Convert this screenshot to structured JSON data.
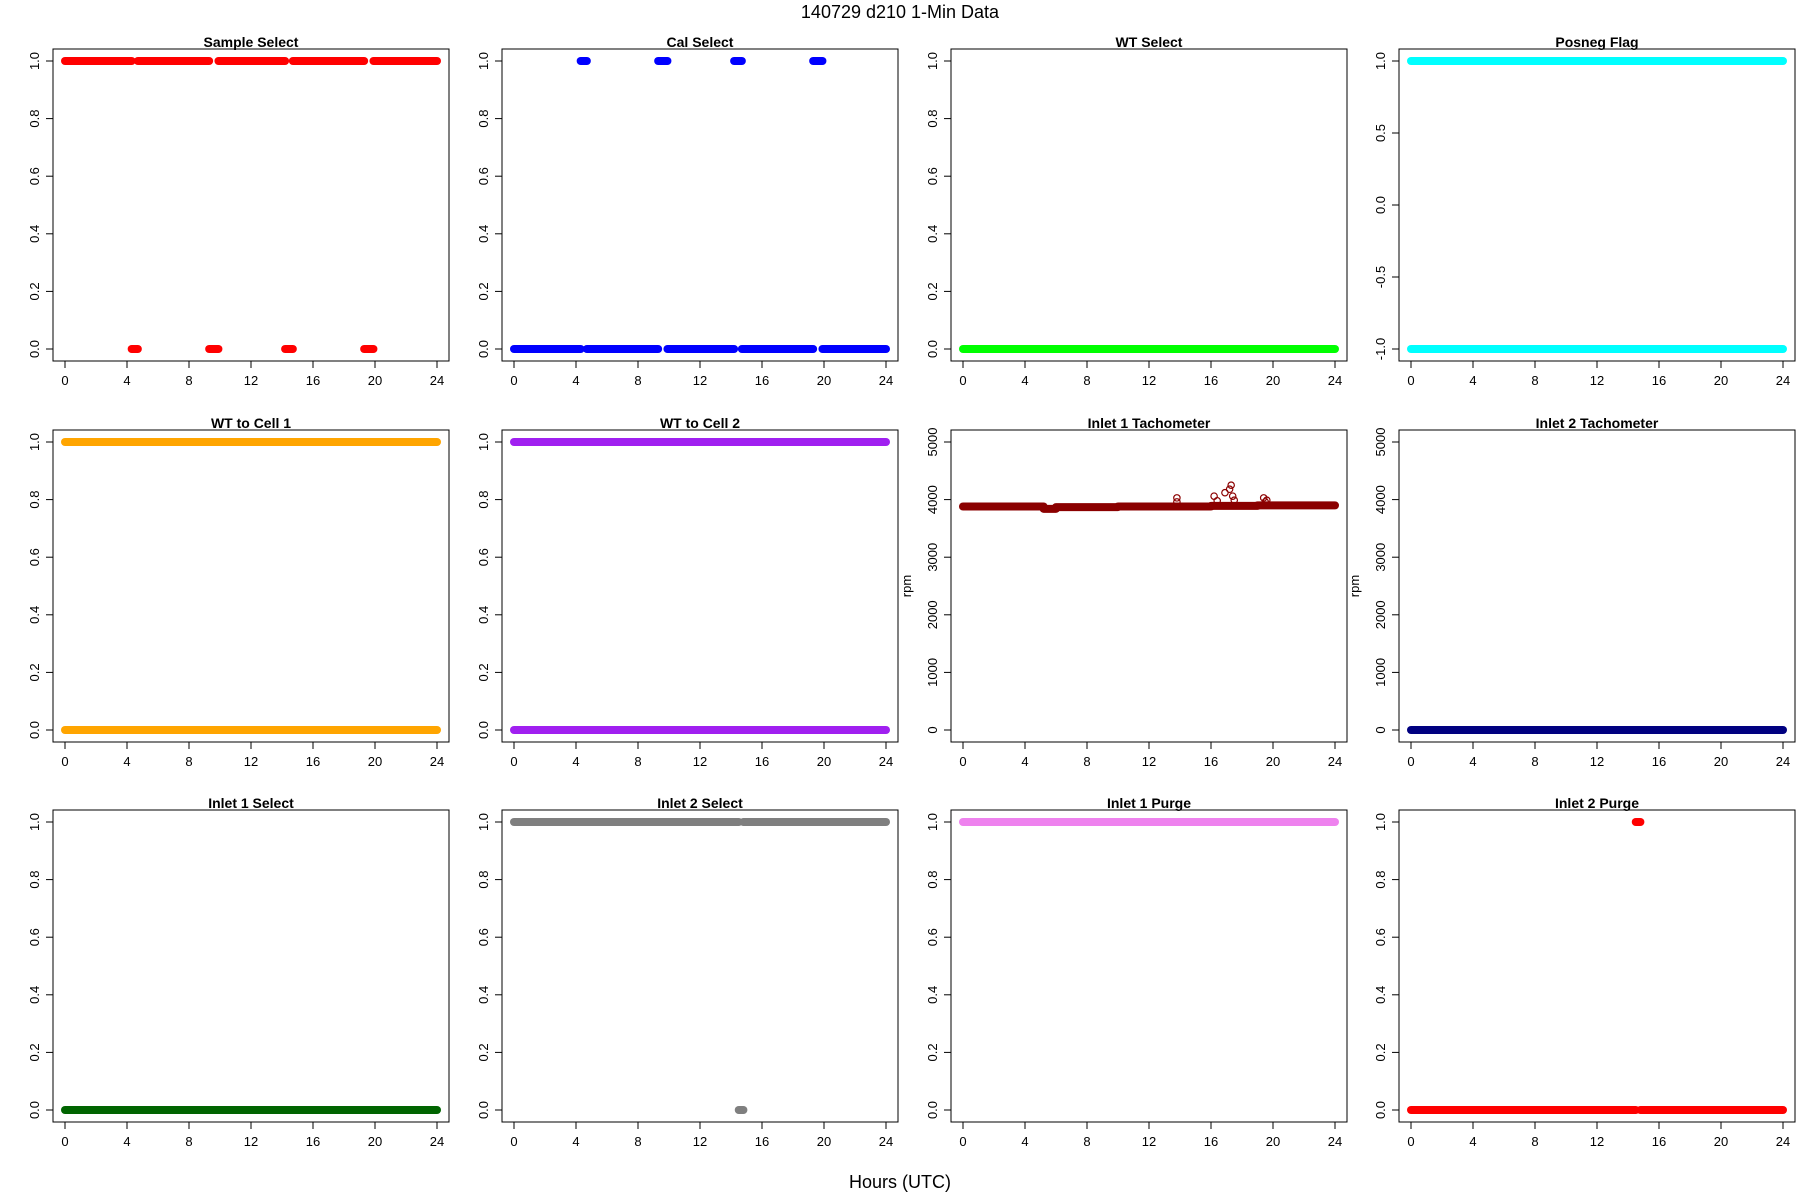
{
  "figure": {
    "title": "140729   d210   1-Min Data",
    "xlabel": "Hours (UTC)"
  },
  "chart_data": [
    {
      "type": "scatter",
      "title": "Sample Select",
      "ylabel": "",
      "color": "#ff0000",
      "xlim": [
        0,
        24
      ],
      "ylim": [
        0,
        1
      ],
      "x_ticks": [
        0,
        4,
        8,
        12,
        16,
        20,
        24
      ],
      "y_ticks": [
        0.0,
        0.2,
        0.4,
        0.6,
        0.8,
        1.0
      ],
      "y_tick_labels": [
        "0.0",
        "0.2",
        "0.4",
        "0.6",
        "0.8",
        "1.0"
      ],
      "segments": [
        {
          "y": 1,
          "x0": 0,
          "x1": 4.3
        },
        {
          "y": 0,
          "x0": 4.3,
          "x1": 4.7
        },
        {
          "y": 1,
          "x0": 4.7,
          "x1": 9.3
        },
        {
          "y": 0,
          "x0": 9.3,
          "x1": 9.9
        },
        {
          "y": 1,
          "x0": 9.9,
          "x1": 14.2
        },
        {
          "y": 0,
          "x0": 14.2,
          "x1": 14.7
        },
        {
          "y": 1,
          "x0": 14.7,
          "x1": 19.3
        },
        {
          "y": 0,
          "x0": 19.3,
          "x1": 19.9
        },
        {
          "y": 1,
          "x0": 19.9,
          "x1": 24
        }
      ],
      "points": []
    },
    {
      "type": "scatter",
      "title": "Cal Select",
      "ylabel": "",
      "color": "#0000ff",
      "xlim": [
        0,
        24
      ],
      "ylim": [
        0,
        1
      ],
      "x_ticks": [
        0,
        4,
        8,
        12,
        16,
        20,
        24
      ],
      "y_ticks": [
        0.0,
        0.2,
        0.4,
        0.6,
        0.8,
        1.0
      ],
      "y_tick_labels": [
        "0.0",
        "0.2",
        "0.4",
        "0.6",
        "0.8",
        "1.0"
      ],
      "segments": [
        {
          "y": 0,
          "x0": 0,
          "x1": 4.3
        },
        {
          "y": 1,
          "x0": 4.3,
          "x1": 4.7
        },
        {
          "y": 0,
          "x0": 4.7,
          "x1": 9.3
        },
        {
          "y": 1,
          "x0": 9.3,
          "x1": 9.9
        },
        {
          "y": 0,
          "x0": 9.9,
          "x1": 14.2
        },
        {
          "y": 1,
          "x0": 14.2,
          "x1": 14.7
        },
        {
          "y": 0,
          "x0": 14.7,
          "x1": 19.3
        },
        {
          "y": 1,
          "x0": 19.3,
          "x1": 19.9
        },
        {
          "y": 0,
          "x0": 19.9,
          "x1": 24
        }
      ],
      "points": []
    },
    {
      "type": "scatter",
      "title": "WT Select",
      "ylabel": "",
      "color": "#00ff00",
      "xlim": [
        0,
        24
      ],
      "ylim": [
        0,
        1
      ],
      "x_ticks": [
        0,
        4,
        8,
        12,
        16,
        20,
        24
      ],
      "y_ticks": [
        0.0,
        0.2,
        0.4,
        0.6,
        0.8,
        1.0
      ],
      "y_tick_labels": [
        "0.0",
        "0.2",
        "0.4",
        "0.6",
        "0.8",
        "1.0"
      ],
      "segments": [
        {
          "y": 0,
          "x0": 0,
          "x1": 24
        }
      ],
      "points": []
    },
    {
      "type": "scatter",
      "title": "Posneg Flag",
      "ylabel": "",
      "color": "#00ffff",
      "xlim": [
        0,
        24
      ],
      "ylim": [
        -1,
        1
      ],
      "x_ticks": [
        0,
        4,
        8,
        12,
        16,
        20,
        24
      ],
      "y_ticks": [
        -1.0,
        -0.5,
        0.0,
        0.5,
        1.0
      ],
      "y_tick_labels": [
        "-1.0",
        "-0.5",
        "0.0",
        "0.5",
        "1.0"
      ],
      "segments": [
        {
          "y": 1,
          "x0": 0,
          "x1": 24
        },
        {
          "y": -1,
          "x0": 0,
          "x1": 24
        }
      ],
      "points": []
    },
    {
      "type": "scatter",
      "title": "WT to Cell 1",
      "ylabel": "",
      "color": "#ffa500",
      "xlim": [
        0,
        24
      ],
      "ylim": [
        0,
        1
      ],
      "x_ticks": [
        0,
        4,
        8,
        12,
        16,
        20,
        24
      ],
      "y_ticks": [
        0.0,
        0.2,
        0.4,
        0.6,
        0.8,
        1.0
      ],
      "y_tick_labels": [
        "0.0",
        "0.2",
        "0.4",
        "0.6",
        "0.8",
        "1.0"
      ],
      "segments": [
        {
          "y": 1,
          "x0": 0,
          "x1": 24
        },
        {
          "y": 0,
          "x0": 0,
          "x1": 24
        }
      ],
      "points": []
    },
    {
      "type": "scatter",
      "title": "WT to Cell 2",
      "ylabel": "",
      "color": "#a020f0",
      "xlim": [
        0,
        24
      ],
      "ylim": [
        0,
        1
      ],
      "x_ticks": [
        0,
        4,
        8,
        12,
        16,
        20,
        24
      ],
      "y_ticks": [
        0.0,
        0.2,
        0.4,
        0.6,
        0.8,
        1.0
      ],
      "y_tick_labels": [
        "0.0",
        "0.2",
        "0.4",
        "0.6",
        "0.8",
        "1.0"
      ],
      "segments": [
        {
          "y": 1,
          "x0": 0,
          "x1": 24
        },
        {
          "y": 0,
          "x0": 0,
          "x1": 24
        }
      ],
      "points": []
    },
    {
      "type": "scatter",
      "title": "Inlet 1 Tachometer",
      "ylabel": "rpm",
      "color": "#8b0000",
      "xlim": [
        0,
        24
      ],
      "ylim": [
        0,
        5000
      ],
      "x_ticks": [
        0,
        4,
        8,
        12,
        16,
        20,
        24
      ],
      "y_ticks": [
        0,
        1000,
        2000,
        3000,
        4000,
        5000
      ],
      "y_tick_labels": [
        "0",
        "1000",
        "2000",
        "3000",
        "4000",
        "5000"
      ],
      "segments": [
        {
          "y": 3880,
          "x0": 0,
          "x1": 5.2
        },
        {
          "y": 3840,
          "x0": 5.2,
          "x1": 6.0
        },
        {
          "y": 3870,
          "x0": 6.0,
          "x1": 10
        },
        {
          "y": 3880,
          "x0": 10,
          "x1": 16
        },
        {
          "y": 3890,
          "x0": 16,
          "x1": 19
        },
        {
          "y": 3900,
          "x0": 19,
          "x1": 24
        }
      ],
      "points": [
        [
          13.8,
          4030
        ],
        [
          13.8,
          3960
        ],
        [
          16.2,
          4060
        ],
        [
          16.4,
          3980
        ],
        [
          16.9,
          4120
        ],
        [
          17.2,
          4180
        ],
        [
          17.3,
          4250
        ],
        [
          17.4,
          4060
        ],
        [
          17.5,
          3990
        ],
        [
          19.4,
          4030
        ],
        [
          19.5,
          3960
        ],
        [
          19.6,
          3990
        ]
      ]
    },
    {
      "type": "scatter",
      "title": "Inlet 2 Tachometer",
      "ylabel": "rpm",
      "color": "#000080",
      "xlim": [
        0,
        24
      ],
      "ylim": [
        0,
        5000
      ],
      "x_ticks": [
        0,
        4,
        8,
        12,
        16,
        20,
        24
      ],
      "y_ticks": [
        0,
        1000,
        2000,
        3000,
        4000,
        5000
      ],
      "y_tick_labels": [
        "0",
        "1000",
        "2000",
        "3000",
        "4000",
        "5000"
      ],
      "segments": [
        {
          "y": 0,
          "x0": 0,
          "x1": 24
        }
      ],
      "points": []
    },
    {
      "type": "scatter",
      "title": "Inlet 1 Select",
      "ylabel": "",
      "color": "#006400",
      "xlim": [
        0,
        24
      ],
      "ylim": [
        0,
        1
      ],
      "x_ticks": [
        0,
        4,
        8,
        12,
        16,
        20,
        24
      ],
      "y_ticks": [
        0.0,
        0.2,
        0.4,
        0.6,
        0.8,
        1.0
      ],
      "y_tick_labels": [
        "0.0",
        "0.2",
        "0.4",
        "0.6",
        "0.8",
        "1.0"
      ],
      "segments": [
        {
          "y": 0,
          "x0": 0,
          "x1": 24
        }
      ],
      "points": []
    },
    {
      "type": "scatter",
      "title": "Inlet 2 Select",
      "ylabel": "",
      "color": "#7f7f7f",
      "xlim": [
        0,
        24
      ],
      "ylim": [
        0,
        1
      ],
      "x_ticks": [
        0,
        4,
        8,
        12,
        16,
        20,
        24
      ],
      "y_ticks": [
        0.0,
        0.2,
        0.4,
        0.6,
        0.8,
        1.0
      ],
      "y_tick_labels": [
        "0.0",
        "0.2",
        "0.4",
        "0.6",
        "0.8",
        "1.0"
      ],
      "segments": [
        {
          "y": 1,
          "x0": 0,
          "x1": 14.5
        },
        {
          "y": 0,
          "x0": 14.5,
          "x1": 14.8
        },
        {
          "y": 1,
          "x0": 14.8,
          "x1": 24
        }
      ],
      "points": []
    },
    {
      "type": "scatter",
      "title": "Inlet 1 Purge",
      "ylabel": "",
      "color": "#ee82ee",
      "xlim": [
        0,
        24
      ],
      "ylim": [
        0,
        1
      ],
      "x_ticks": [
        0,
        4,
        8,
        12,
        16,
        20,
        24
      ],
      "y_ticks": [
        0.0,
        0.2,
        0.4,
        0.6,
        0.8,
        1.0
      ],
      "y_tick_labels": [
        "0.0",
        "0.2",
        "0.4",
        "0.6",
        "0.8",
        "1.0"
      ],
      "segments": [
        {
          "y": 1,
          "x0": 0,
          "x1": 24
        }
      ],
      "points": []
    },
    {
      "type": "scatter",
      "title": "Inlet 2 Purge",
      "ylabel": "",
      "color": "#ff0000",
      "xlim": [
        0,
        24
      ],
      "ylim": [
        0,
        1
      ],
      "x_ticks": [
        0,
        4,
        8,
        12,
        16,
        20,
        24
      ],
      "y_ticks": [
        0.0,
        0.2,
        0.4,
        0.6,
        0.8,
        1.0
      ],
      "y_tick_labels": [
        "0.0",
        "0.2",
        "0.4",
        "0.6",
        "0.8",
        "1.0"
      ],
      "segments": [
        {
          "y": 0,
          "x0": 0,
          "x1": 14.5
        },
        {
          "y": 1,
          "x0": 14.5,
          "x1": 14.8
        },
        {
          "y": 0,
          "x0": 14.8,
          "x1": 24
        }
      ],
      "points": []
    }
  ]
}
